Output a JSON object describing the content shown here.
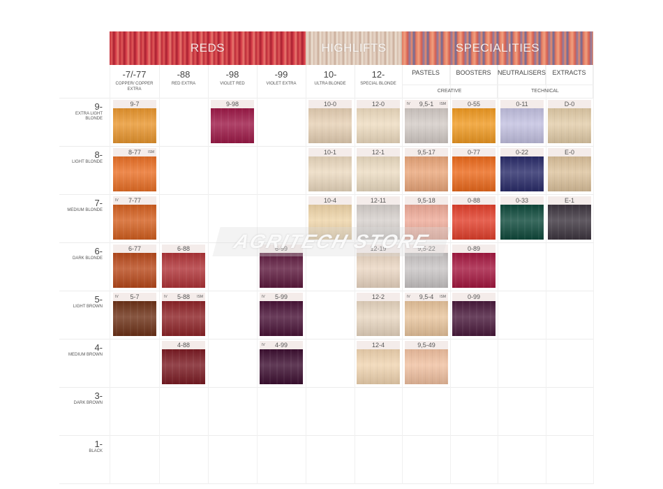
{
  "banners": [
    {
      "label": "REDS"
    },
    {
      "label": "HIGHLIFTS"
    },
    {
      "label": "SPECIALITIES"
    }
  ],
  "columns": [
    {
      "code": "-7/-77",
      "name": "COPPER/ COPPER EXTRA"
    },
    {
      "code": "-88",
      "name": "RED EXTRA"
    },
    {
      "code": "-98",
      "name": "VIOLET RED"
    },
    {
      "code": "-99",
      "name": "VIOLET EXTRA"
    },
    {
      "code": "10-",
      "name": "ULTRA BLONDE"
    },
    {
      "code": "12-",
      "name": "SPECIAL BLONDE"
    },
    {
      "code": "PASTELS"
    },
    {
      "code": "BOOSTERS"
    },
    {
      "code": "NEUTRALISERS"
    },
    {
      "code": "EXTRACTS"
    }
  ],
  "column_groups": [
    {
      "label": "CREATIVE"
    },
    {
      "label": "TECHNICAL"
    }
  ],
  "rows": [
    {
      "num": "9-",
      "desc": "EXTRA LIGHT BLONDE"
    },
    {
      "num": "8-",
      "desc": "LIGHT BLONDE"
    },
    {
      "num": "7-",
      "desc": "MEDIUM BLONDE"
    },
    {
      "num": "6-",
      "desc": "DARK BLONDE"
    },
    {
      "num": "5-",
      "desc": "LIGHT BROWN"
    },
    {
      "num": "4-",
      "desc": "MEDIUM BROWN"
    },
    {
      "num": "3-",
      "desc": "DARK BROWN"
    },
    {
      "num": "1-",
      "desc": "BLACK"
    }
  ],
  "swatches": [
    {
      "row": 0,
      "col": 0,
      "label": "9-7",
      "color": "#e9962e",
      "iv": "",
      "ism": ""
    },
    {
      "row": 0,
      "col": 2,
      "label": "9-98",
      "color": "#9e1a48",
      "iv": "",
      "ism": ""
    },
    {
      "row": 0,
      "col": 4,
      "label": "10-0",
      "color": "#e6d0b4",
      "iv": "",
      "ism": ""
    },
    {
      "row": 0,
      "col": 5,
      "label": "12-0",
      "color": "#eedcc0",
      "iv": "",
      "ism": ""
    },
    {
      "row": 0,
      "col": 6,
      "label": "9,5-1",
      "color": "#d3cbc6",
      "iv": "IV",
      "ism": "ISM"
    },
    {
      "row": 0,
      "col": 7,
      "label": "0-55",
      "color": "#f09a22",
      "iv": "",
      "ism": ""
    },
    {
      "row": 0,
      "col": 8,
      "label": "0-11",
      "color": "#c2c0e0",
      "iv": "",
      "ism": ""
    },
    {
      "row": 0,
      "col": 9,
      "label": "D-0",
      "color": "#e2cca8",
      "iv": "",
      "ism": ""
    },
    {
      "row": 1,
      "col": 0,
      "label": "8-77",
      "color": "#ea7026",
      "iv": "",
      "ism": "ISM"
    },
    {
      "row": 1,
      "col": 4,
      "label": "10-1",
      "color": "#ebd9bf",
      "iv": "",
      "ism": ""
    },
    {
      "row": 1,
      "col": 5,
      "label": "12-1",
      "color": "#ecdcc2",
      "iv": "",
      "ism": ""
    },
    {
      "row": 1,
      "col": 6,
      "label": "9,5-17",
      "color": "#eaa67a",
      "iv": "",
      "ism": ""
    },
    {
      "row": 1,
      "col": 7,
      "label": "0-77",
      "color": "#ec6a1c",
      "iv": "",
      "ism": ""
    },
    {
      "row": 1,
      "col": 8,
      "label": "0-22",
      "color": "#2a2c6a",
      "iv": "",
      "ism": ""
    },
    {
      "row": 1,
      "col": 9,
      "label": "E-0",
      "color": "#dcc29c",
      "iv": "",
      "ism": ""
    },
    {
      "row": 2,
      "col": 0,
      "label": "7-77",
      "color": "#d46020",
      "iv": "IV",
      "ism": ""
    },
    {
      "row": 2,
      "col": 4,
      "label": "10-4",
      "color": "#eed4a8",
      "iv": "",
      "ism": ""
    },
    {
      "row": 2,
      "col": 5,
      "label": "12-11",
      "color": "#d6d0cc",
      "iv": "",
      "ism": ""
    },
    {
      "row": 2,
      "col": 6,
      "label": "9,5-18",
      "color": "#eeaa98",
      "iv": "",
      "ism": ""
    },
    {
      "row": 2,
      "col": 7,
      "label": "0-88",
      "color": "#e2402c",
      "iv": "",
      "ism": ""
    },
    {
      "row": 2,
      "col": 8,
      "label": "0-33",
      "color": "#0f4a3c",
      "iv": "",
      "ism": ""
    },
    {
      "row": 2,
      "col": 9,
      "label": "E-1",
      "color": "#3e3640",
      "iv": "",
      "ism": ""
    },
    {
      "row": 3,
      "col": 0,
      "label": "6-77",
      "color": "#b94a1c",
      "iv": "",
      "ism": ""
    },
    {
      "row": 3,
      "col": 1,
      "label": "6-88",
      "color": "#b03438",
      "iv": "",
      "ism": ""
    },
    {
      "row": 3,
      "col": 3,
      "label": "6-99",
      "color": "#5e1a3e",
      "iv": "",
      "ism": ""
    },
    {
      "row": 3,
      "col": 5,
      "label": "12-19",
      "color": "#ead6c2",
      "iv": "",
      "ism": ""
    },
    {
      "row": 3,
      "col": 6,
      "label": "9,5-22",
      "color": "#c8c4c4",
      "iv": "",
      "ism": ""
    },
    {
      "row": 3,
      "col": 7,
      "label": "0-89",
      "color": "#a51840",
      "iv": "",
      "ism": ""
    },
    {
      "row": 4,
      "col": 0,
      "label": "5-7",
      "color": "#6e3218",
      "iv": "IV",
      "ism": ""
    },
    {
      "row": 4,
      "col": 1,
      "label": "5-88",
      "color": "#8e2428",
      "iv": "IV",
      "ism": "ISM"
    },
    {
      "row": 4,
      "col": 3,
      "label": "5-99",
      "color": "#4a1438",
      "iv": "IV",
      "ism": ""
    },
    {
      "row": 4,
      "col": 5,
      "label": "12-2",
      "color": "#e8d6c0",
      "iv": "",
      "ism": ""
    },
    {
      "row": 4,
      "col": 6,
      "label": "9,5-4",
      "color": "#e8c49c",
      "iv": "IV",
      "ism": "ISM"
    },
    {
      "row": 4,
      "col": 7,
      "label": "0-99",
      "color": "#4a1a3c",
      "iv": "",
      "ism": ""
    },
    {
      "row": 5,
      "col": 1,
      "label": "4-88",
      "color": "#7c1c24",
      "iv": "",
      "ism": ""
    },
    {
      "row": 5,
      "col": 3,
      "label": "4-99",
      "color": "#3e1032",
      "iv": "IV",
      "ism": ""
    },
    {
      "row": 5,
      "col": 5,
      "label": "12-4",
      "color": "#f0d4b0",
      "iv": "",
      "ism": ""
    },
    {
      "row": 5,
      "col": 6,
      "label": "9,5-49",
      "color": "#f0c0a0",
      "iv": "",
      "ism": ""
    }
  ],
  "watermark": {
    "label": "AGRITECH STORE"
  }
}
